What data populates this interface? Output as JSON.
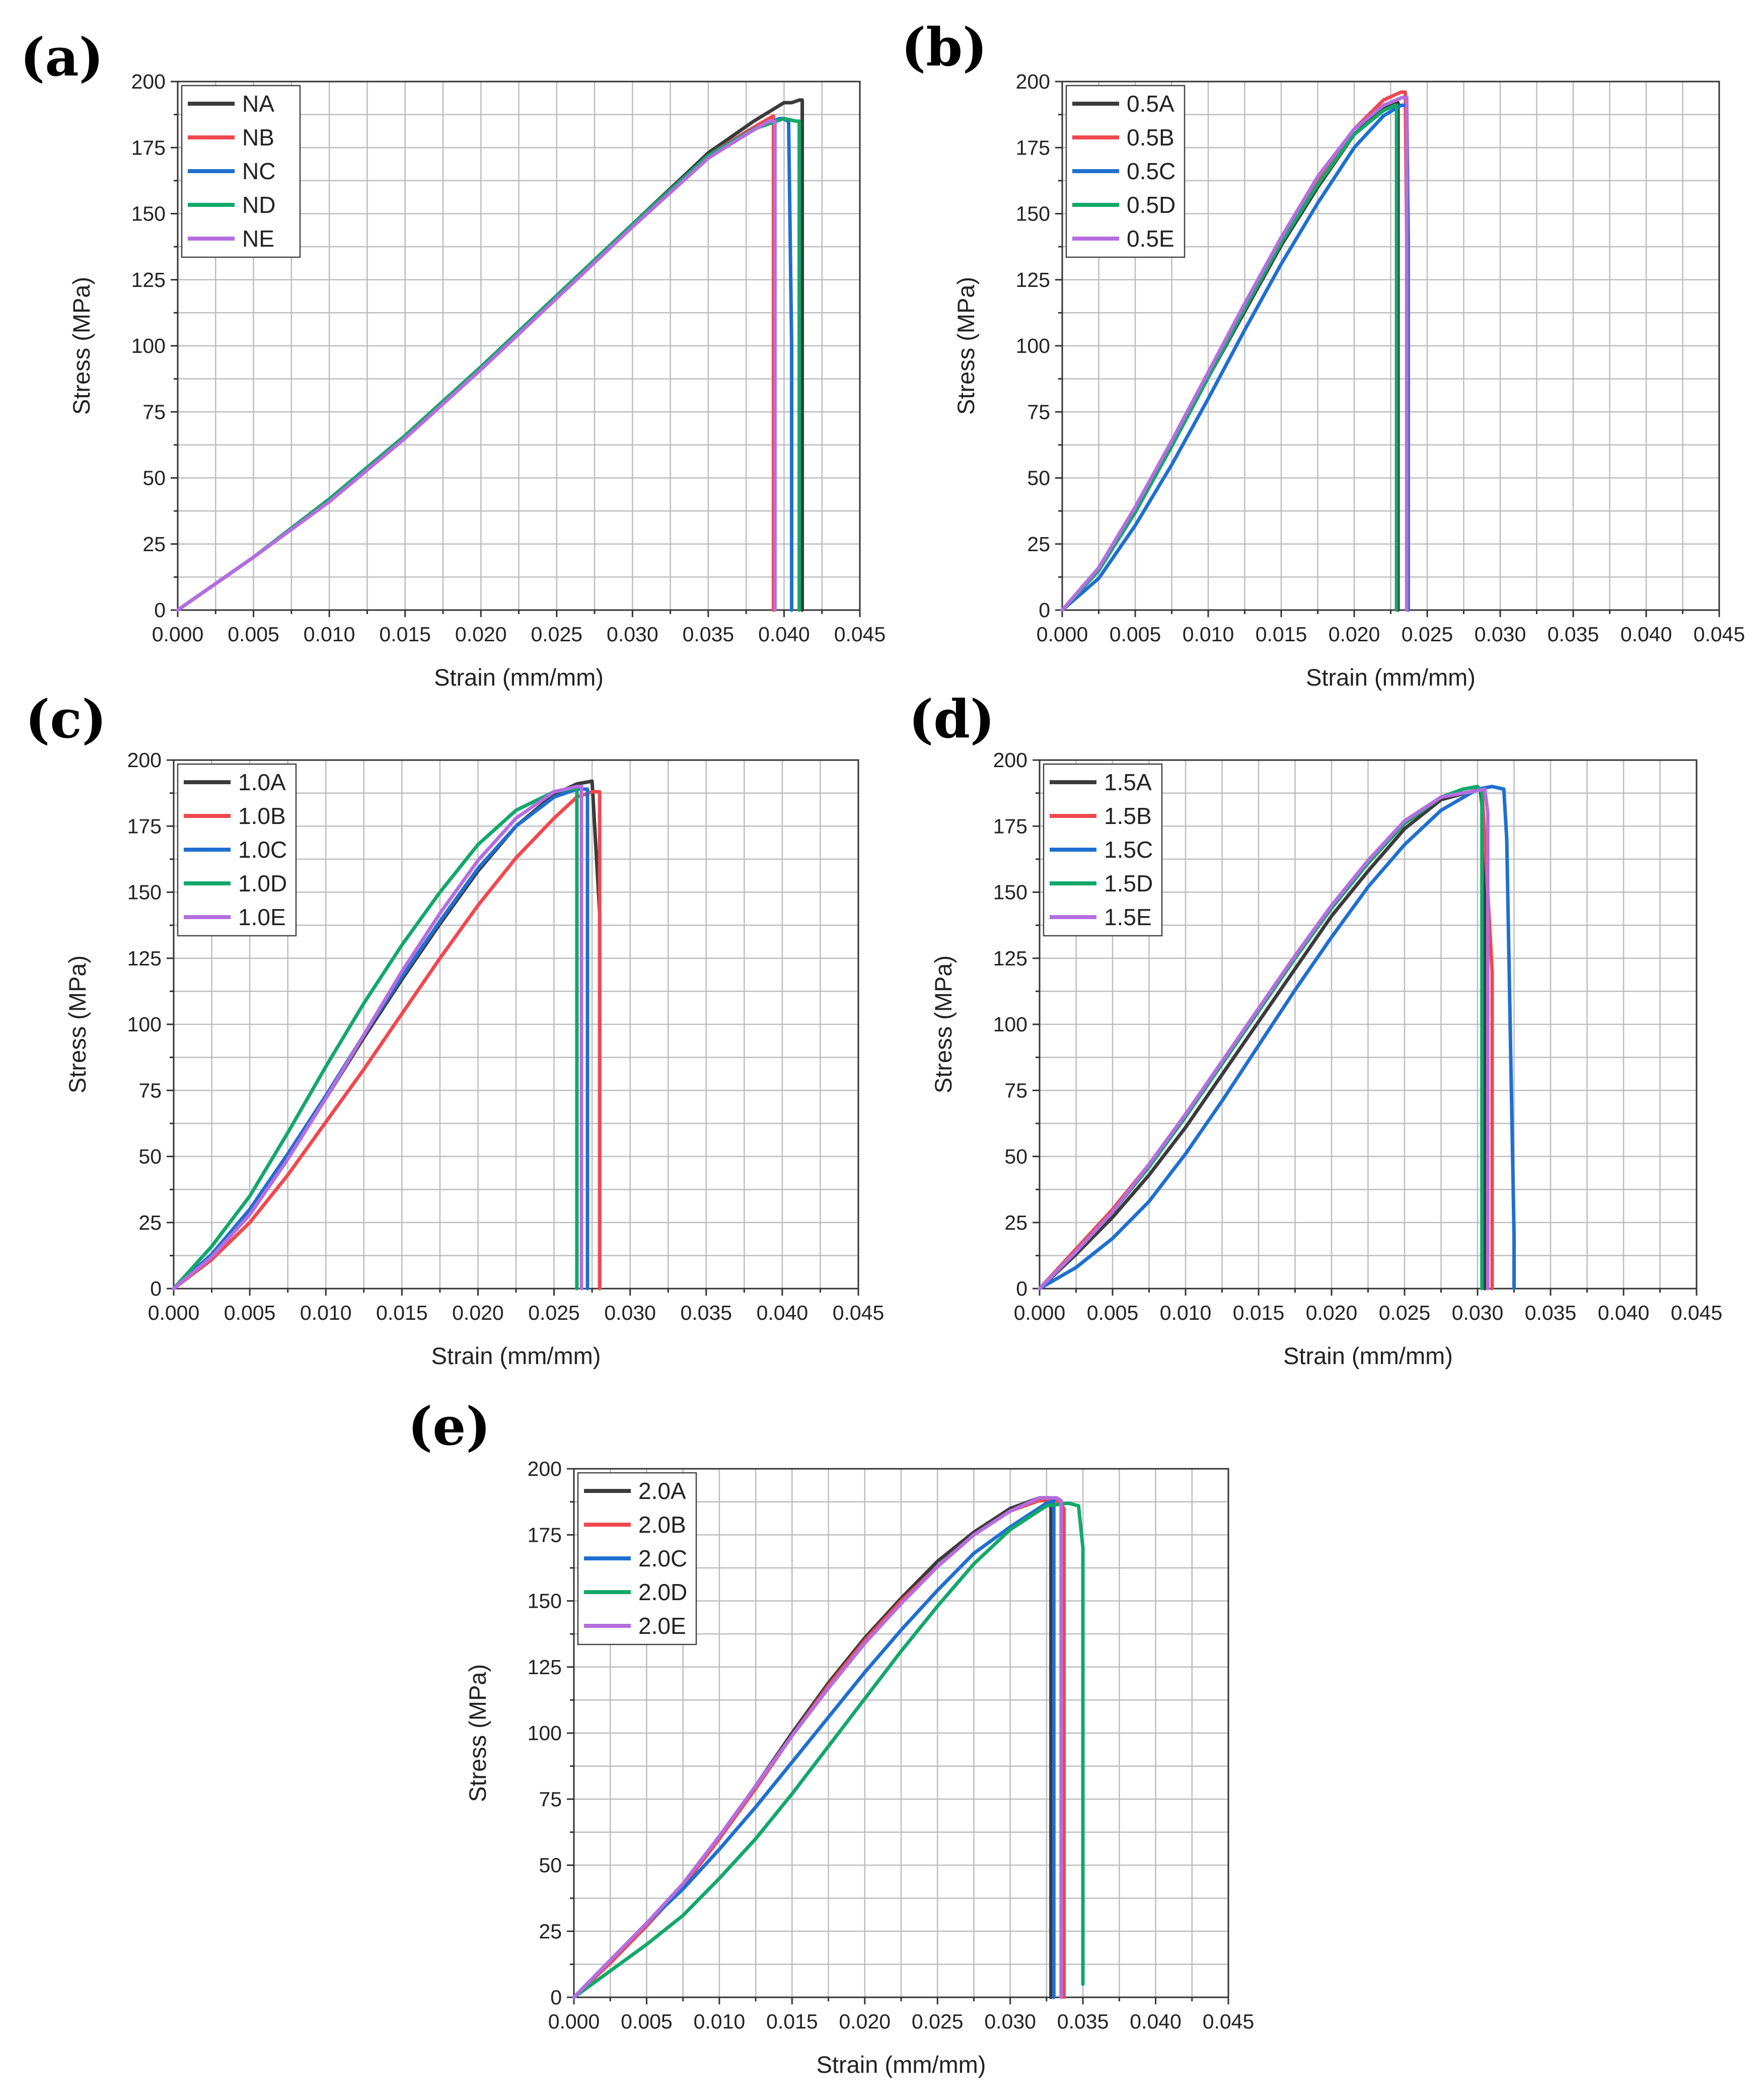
{
  "colors": {
    "A": "#3b3b3b",
    "B": "#f0484e",
    "C": "#1f6fd0",
    "D": "#12a86a",
    "E": "#b56de0"
  },
  "chart_data": [
    {
      "panel": "(a)",
      "type": "line",
      "xlabel": "Strain (mm/mm)",
      "ylabel": "Stress (MPa)",
      "xlim": [
        0,
        0.045
      ],
      "ylim": [
        0,
        200
      ],
      "xticks": [
        "0.000",
        "0.005",
        "0.010",
        "0.015",
        "0.020",
        "0.025",
        "0.030",
        "0.035",
        "0.040",
        "0.045"
      ],
      "yticks": [
        "0",
        "25",
        "50",
        "75",
        "100",
        "125",
        "150",
        "175",
        "200"
      ],
      "grid": true,
      "legend_position": "top-left",
      "series": [
        {
          "name": "NA",
          "color_key": "A",
          "x": [
            0,
            0.005,
            0.01,
            0.015,
            0.02,
            0.025,
            0.03,
            0.035,
            0.038,
            0.04,
            0.0405,
            0.041,
            0.0412,
            0.0412
          ],
          "y": [
            0,
            20,
            42,
            66,
            92,
            119,
            146,
            173,
            185,
            192,
            192,
            193,
            193,
            0
          ]
        },
        {
          "name": "NB",
          "color_key": "B",
          "x": [
            0,
            0.005,
            0.01,
            0.015,
            0.02,
            0.025,
            0.03,
            0.035,
            0.0375,
            0.039,
            0.0393,
            0.0393
          ],
          "y": [
            0,
            20,
            42,
            66,
            92,
            119,
            146,
            172,
            181,
            186,
            187,
            0
          ]
        },
        {
          "name": "NC",
          "color_key": "C",
          "x": [
            0,
            0.005,
            0.01,
            0.015,
            0.02,
            0.025,
            0.03,
            0.035,
            0.038,
            0.0397,
            0.0399,
            0.0403,
            0.0405,
            0.0405
          ],
          "y": [
            0,
            20,
            42,
            66,
            92,
            119,
            146,
            172,
            182,
            186,
            186,
            185,
            100,
            0
          ]
        },
        {
          "name": "ND",
          "color_key": "D",
          "x": [
            0,
            0.005,
            0.01,
            0.015,
            0.02,
            0.025,
            0.03,
            0.035,
            0.038,
            0.04,
            0.0408,
            0.041,
            0.041
          ],
          "y": [
            0,
            20,
            42,
            66,
            92,
            119,
            146,
            172,
            182,
            186,
            185,
            185,
            0
          ]
        },
        {
          "name": "NE",
          "color_key": "E",
          "x": [
            0,
            0.005,
            0.01,
            0.015,
            0.02,
            0.025,
            0.03,
            0.035,
            0.0375,
            0.039,
            0.0394,
            0.0394
          ],
          "y": [
            0,
            20,
            41,
            65,
            91,
            118,
            145,
            171,
            180,
            185,
            185,
            0
          ]
        }
      ]
    },
    {
      "panel": "(b)",
      "type": "line",
      "xlabel": "Strain (mm/mm)",
      "ylabel": "Stress (MPa)",
      "xlim": [
        0,
        0.045
      ],
      "ylim": [
        0,
        200
      ],
      "xticks": [
        "0.000",
        "0.005",
        "0.010",
        "0.015",
        "0.020",
        "0.025",
        "0.030",
        "0.035",
        "0.040",
        "0.045"
      ],
      "yticks": [
        "0",
        "25",
        "50",
        "75",
        "100",
        "125",
        "150",
        "175",
        "200"
      ],
      "grid": true,
      "legend_position": "top-left",
      "series": [
        {
          "name": "0.5A",
          "color_key": "A",
          "x": [
            0,
            0.0025,
            0.005,
            0.0075,
            0.01,
            0.0125,
            0.015,
            0.0175,
            0.02,
            0.022,
            0.023,
            0.023
          ],
          "y": [
            0,
            15,
            37,
            62,
            88,
            113,
            138,
            160,
            180,
            190,
            192,
            0
          ]
        },
        {
          "name": "0.5B",
          "color_key": "B",
          "x": [
            0,
            0.0025,
            0.005,
            0.0075,
            0.01,
            0.0125,
            0.015,
            0.0175,
            0.02,
            0.022,
            0.0232,
            0.0235,
            0.0236,
            0.0236
          ],
          "y": [
            0,
            15,
            38,
            63,
            89,
            114,
            139,
            162,
            182,
            193,
            196,
            196,
            140,
            0
          ]
        },
        {
          "name": "0.5C",
          "color_key": "C",
          "x": [
            0,
            0.0025,
            0.005,
            0.0075,
            0.01,
            0.0125,
            0.015,
            0.0175,
            0.02,
            0.022,
            0.0232,
            0.0236,
            0.0237,
            0.0237
          ],
          "y": [
            0,
            12,
            32,
            55,
            80,
            106,
            131,
            154,
            175,
            187,
            191,
            191,
            140,
            0
          ]
        },
        {
          "name": "0.5D",
          "color_key": "D",
          "x": [
            0,
            0.0025,
            0.005,
            0.0075,
            0.01,
            0.0125,
            0.015,
            0.0175,
            0.02,
            0.022,
            0.0228,
            0.0229,
            0.0229
          ],
          "y": [
            0,
            15,
            37,
            62,
            88,
            114,
            139,
            161,
            180,
            189,
            191,
            191,
            0
          ]
        },
        {
          "name": "0.5E",
          "color_key": "E",
          "x": [
            0,
            0.0025,
            0.005,
            0.0075,
            0.01,
            0.0125,
            0.015,
            0.0175,
            0.02,
            0.022,
            0.0233,
            0.0236,
            0.0236
          ],
          "y": [
            0,
            16,
            39,
            64,
            90,
            116,
            141,
            164,
            182,
            191,
            194,
            194,
            0
          ]
        }
      ]
    },
    {
      "panel": "(c)",
      "type": "line",
      "xlabel": "Strain (mm/mm)",
      "ylabel": "Stress (MPa)",
      "xlim": [
        0,
        0.045
      ],
      "ylim": [
        0,
        200
      ],
      "xticks": [
        "0.000",
        "0.005",
        "0.010",
        "0.015",
        "0.020",
        "0.025",
        "0.030",
        "0.035",
        "0.040",
        "0.045"
      ],
      "yticks": [
        "0",
        "25",
        "50",
        "75",
        "100",
        "125",
        "150",
        "175",
        "200"
      ],
      "grid": true,
      "legend_position": "top-left",
      "series": [
        {
          "name": "1.0A",
          "color_key": "A",
          "x": [
            0,
            0.0025,
            0.005,
            0.0075,
            0.01,
            0.0125,
            0.015,
            0.0175,
            0.02,
            0.0225,
            0.025,
            0.0265,
            0.0275,
            0.028,
            0.028
          ],
          "y": [
            0,
            12,
            29,
            50,
            72,
            95,
            117,
            138,
            158,
            175,
            187,
            191,
            192,
            142,
            0
          ]
        },
        {
          "name": "1.0B",
          "color_key": "B",
          "x": [
            0,
            0.0025,
            0.005,
            0.0075,
            0.01,
            0.0125,
            0.015,
            0.0175,
            0.02,
            0.0225,
            0.025,
            0.0265,
            0.0275,
            0.028,
            0.028
          ],
          "y": [
            0,
            11,
            25,
            43,
            63,
            83,
            104,
            125,
            145,
            163,
            178,
            186,
            188,
            188,
            0
          ]
        },
        {
          "name": "1.0C",
          "color_key": "C",
          "x": [
            0,
            0.0025,
            0.005,
            0.0075,
            0.01,
            0.0125,
            0.015,
            0.0175,
            0.02,
            0.0225,
            0.025,
            0.0265,
            0.0272,
            0.0272
          ],
          "y": [
            0,
            13,
            30,
            51,
            73,
            96,
            118,
            139,
            159,
            175,
            186,
            189,
            189,
            0
          ]
        },
        {
          "name": "1.0D",
          "color_key": "D",
          "x": [
            0,
            0.0025,
            0.005,
            0.0075,
            0.01,
            0.0125,
            0.015,
            0.0175,
            0.02,
            0.0225,
            0.025,
            0.026,
            0.0265,
            0.0265
          ],
          "y": [
            0,
            16,
            35,
            59,
            84,
            108,
            130,
            150,
            168,
            181,
            188,
            189,
            189,
            0
          ]
        },
        {
          "name": "1.0E",
          "color_key": "E",
          "x": [
            0,
            0.0025,
            0.005,
            0.0075,
            0.01,
            0.0125,
            0.015,
            0.0175,
            0.02,
            0.0225,
            0.025,
            0.0265,
            0.0268,
            0.0268
          ],
          "y": [
            0,
            12,
            28,
            49,
            72,
            96,
            120,
            142,
            162,
            178,
            188,
            190,
            190,
            0
          ]
        }
      ]
    },
    {
      "panel": "(d)",
      "type": "line",
      "xlabel": "Strain (mm/mm)",
      "ylabel": "Stress (MPa)",
      "xlim": [
        0,
        0.045
      ],
      "ylim": [
        0,
        200
      ],
      "xticks": [
        "0.000",
        "0.005",
        "0.010",
        "0.015",
        "0.020",
        "0.025",
        "0.030",
        "0.035",
        "0.040",
        "0.045"
      ],
      "yticks": [
        "0",
        "25",
        "50",
        "75",
        "100",
        "125",
        "150",
        "175",
        "200"
      ],
      "grid": true,
      "legend_position": "top-left",
      "series": [
        {
          "name": "1.5A",
          "color_key": "A",
          "x": [
            0,
            0.0025,
            0.005,
            0.0075,
            0.01,
            0.0125,
            0.015,
            0.0175,
            0.02,
            0.0225,
            0.025,
            0.0275,
            0.0295,
            0.0302,
            0.0305,
            0.0305
          ],
          "y": [
            0,
            13,
            27,
            43,
            61,
            81,
            101,
            121,
            141,
            158,
            174,
            185,
            188,
            189,
            170,
            0
          ]
        },
        {
          "name": "1.5B",
          "color_key": "B",
          "x": [
            0,
            0.0025,
            0.005,
            0.0075,
            0.01,
            0.0125,
            0.015,
            0.0175,
            0.02,
            0.0225,
            0.025,
            0.0275,
            0.0295,
            0.0303,
            0.031,
            0.031
          ],
          "y": [
            0,
            15,
            30,
            47,
            66,
            85,
            105,
            125,
            144,
            161,
            176,
            186,
            188,
            189,
            120,
            0
          ]
        },
        {
          "name": "1.5C",
          "color_key": "C",
          "x": [
            0,
            0.0025,
            0.005,
            0.0075,
            0.01,
            0.0125,
            0.015,
            0.0175,
            0.02,
            0.0225,
            0.025,
            0.0275,
            0.03,
            0.031,
            0.0318,
            0.032,
            0.0325,
            0.0325
          ],
          "y": [
            0,
            8,
            19,
            33,
            51,
            71,
            92,
            113,
            133,
            152,
            168,
            181,
            189,
            190,
            189,
            170,
            20,
            0
          ]
        },
        {
          "name": "1.5D",
          "color_key": "D",
          "x": [
            0,
            0.0025,
            0.005,
            0.0075,
            0.01,
            0.0125,
            0.015,
            0.0175,
            0.02,
            0.0225,
            0.025,
            0.0275,
            0.029,
            0.03,
            0.0303,
            0.0303
          ],
          "y": [
            0,
            14,
            29,
            46,
            65,
            85,
            105,
            125,
            144,
            161,
            176,
            186,
            189,
            190,
            188,
            0
          ]
        },
        {
          "name": "1.5E",
          "color_key": "E",
          "x": [
            0,
            0.0025,
            0.005,
            0.0075,
            0.01,
            0.0125,
            0.015,
            0.0175,
            0.02,
            0.0225,
            0.025,
            0.0275,
            0.0295,
            0.0305,
            0.0307,
            0.0307
          ],
          "y": [
            0,
            14,
            29,
            47,
            66,
            86,
            106,
            126,
            145,
            162,
            177,
            186,
            188,
            189,
            180,
            0
          ]
        }
      ]
    },
    {
      "panel": "(e)",
      "type": "line",
      "xlabel": "Strain (mm/mm)",
      "ylabel": "Stress (MPa)",
      "xlim": [
        0,
        0.045
      ],
      "ylim": [
        0,
        200
      ],
      "xticks": [
        "0.000",
        "0.005",
        "0.010",
        "0.015",
        "0.020",
        "0.025",
        "0.030",
        "0.035",
        "0.040",
        "0.045"
      ],
      "yticks": [
        "0",
        "25",
        "50",
        "75",
        "100",
        "125",
        "150",
        "175",
        "200"
      ],
      "grid": true,
      "legend_position": "top-left",
      "series": [
        {
          "name": "2.0A",
          "color_key": "A",
          "x": [
            0,
            0.0025,
            0.005,
            0.0075,
            0.01,
            0.0125,
            0.015,
            0.0175,
            0.02,
            0.0225,
            0.025,
            0.0275,
            0.03,
            0.032,
            0.0328,
            0.0328
          ],
          "y": [
            0,
            14,
            28,
            42,
            60,
            80,
            100,
            119,
            136,
            151,
            165,
            176,
            185,
            189,
            189,
            0
          ]
        },
        {
          "name": "2.0B",
          "color_key": "B",
          "x": [
            0,
            0.0025,
            0.005,
            0.0075,
            0.01,
            0.0125,
            0.015,
            0.0175,
            0.02,
            0.0225,
            0.025,
            0.0275,
            0.03,
            0.032,
            0.0332,
            0.0337,
            0.0337
          ],
          "y": [
            0,
            13,
            27,
            42,
            60,
            79,
            99,
            118,
            135,
            150,
            163,
            175,
            184,
            188,
            188,
            185,
            0
          ]
        },
        {
          "name": "2.0C",
          "color_key": "C",
          "x": [
            0,
            0.0025,
            0.005,
            0.0075,
            0.01,
            0.0125,
            0.015,
            0.0175,
            0.02,
            0.0225,
            0.025,
            0.0275,
            0.03,
            0.0325,
            0.033,
            0.033
          ],
          "y": [
            0,
            14,
            28,
            41,
            56,
            72,
            89,
            106,
            123,
            139,
            154,
            168,
            178,
            187,
            188,
            0
          ]
        },
        {
          "name": "2.0D",
          "color_key": "D",
          "x": [
            0,
            0.0025,
            0.005,
            0.0075,
            0.01,
            0.0125,
            0.015,
            0.0175,
            0.02,
            0.0225,
            0.025,
            0.0275,
            0.03,
            0.0325,
            0.034,
            0.0347,
            0.035,
            0.035
          ],
          "y": [
            0,
            10,
            20,
            31,
            45,
            60,
            77,
            95,
            113,
            131,
            148,
            164,
            177,
            186,
            187,
            186,
            170,
            5
          ]
        },
        {
          "name": "2.0E",
          "color_key": "E",
          "x": [
            0,
            0.0025,
            0.005,
            0.0075,
            0.01,
            0.0125,
            0.015,
            0.0175,
            0.02,
            0.0225,
            0.025,
            0.0275,
            0.03,
            0.032,
            0.0332,
            0.0335,
            0.0335
          ],
          "y": [
            0,
            14,
            28,
            43,
            61,
            80,
            99,
            117,
            134,
            149,
            163,
            175,
            184,
            189,
            189,
            188,
            0
          ]
        }
      ]
    }
  ]
}
